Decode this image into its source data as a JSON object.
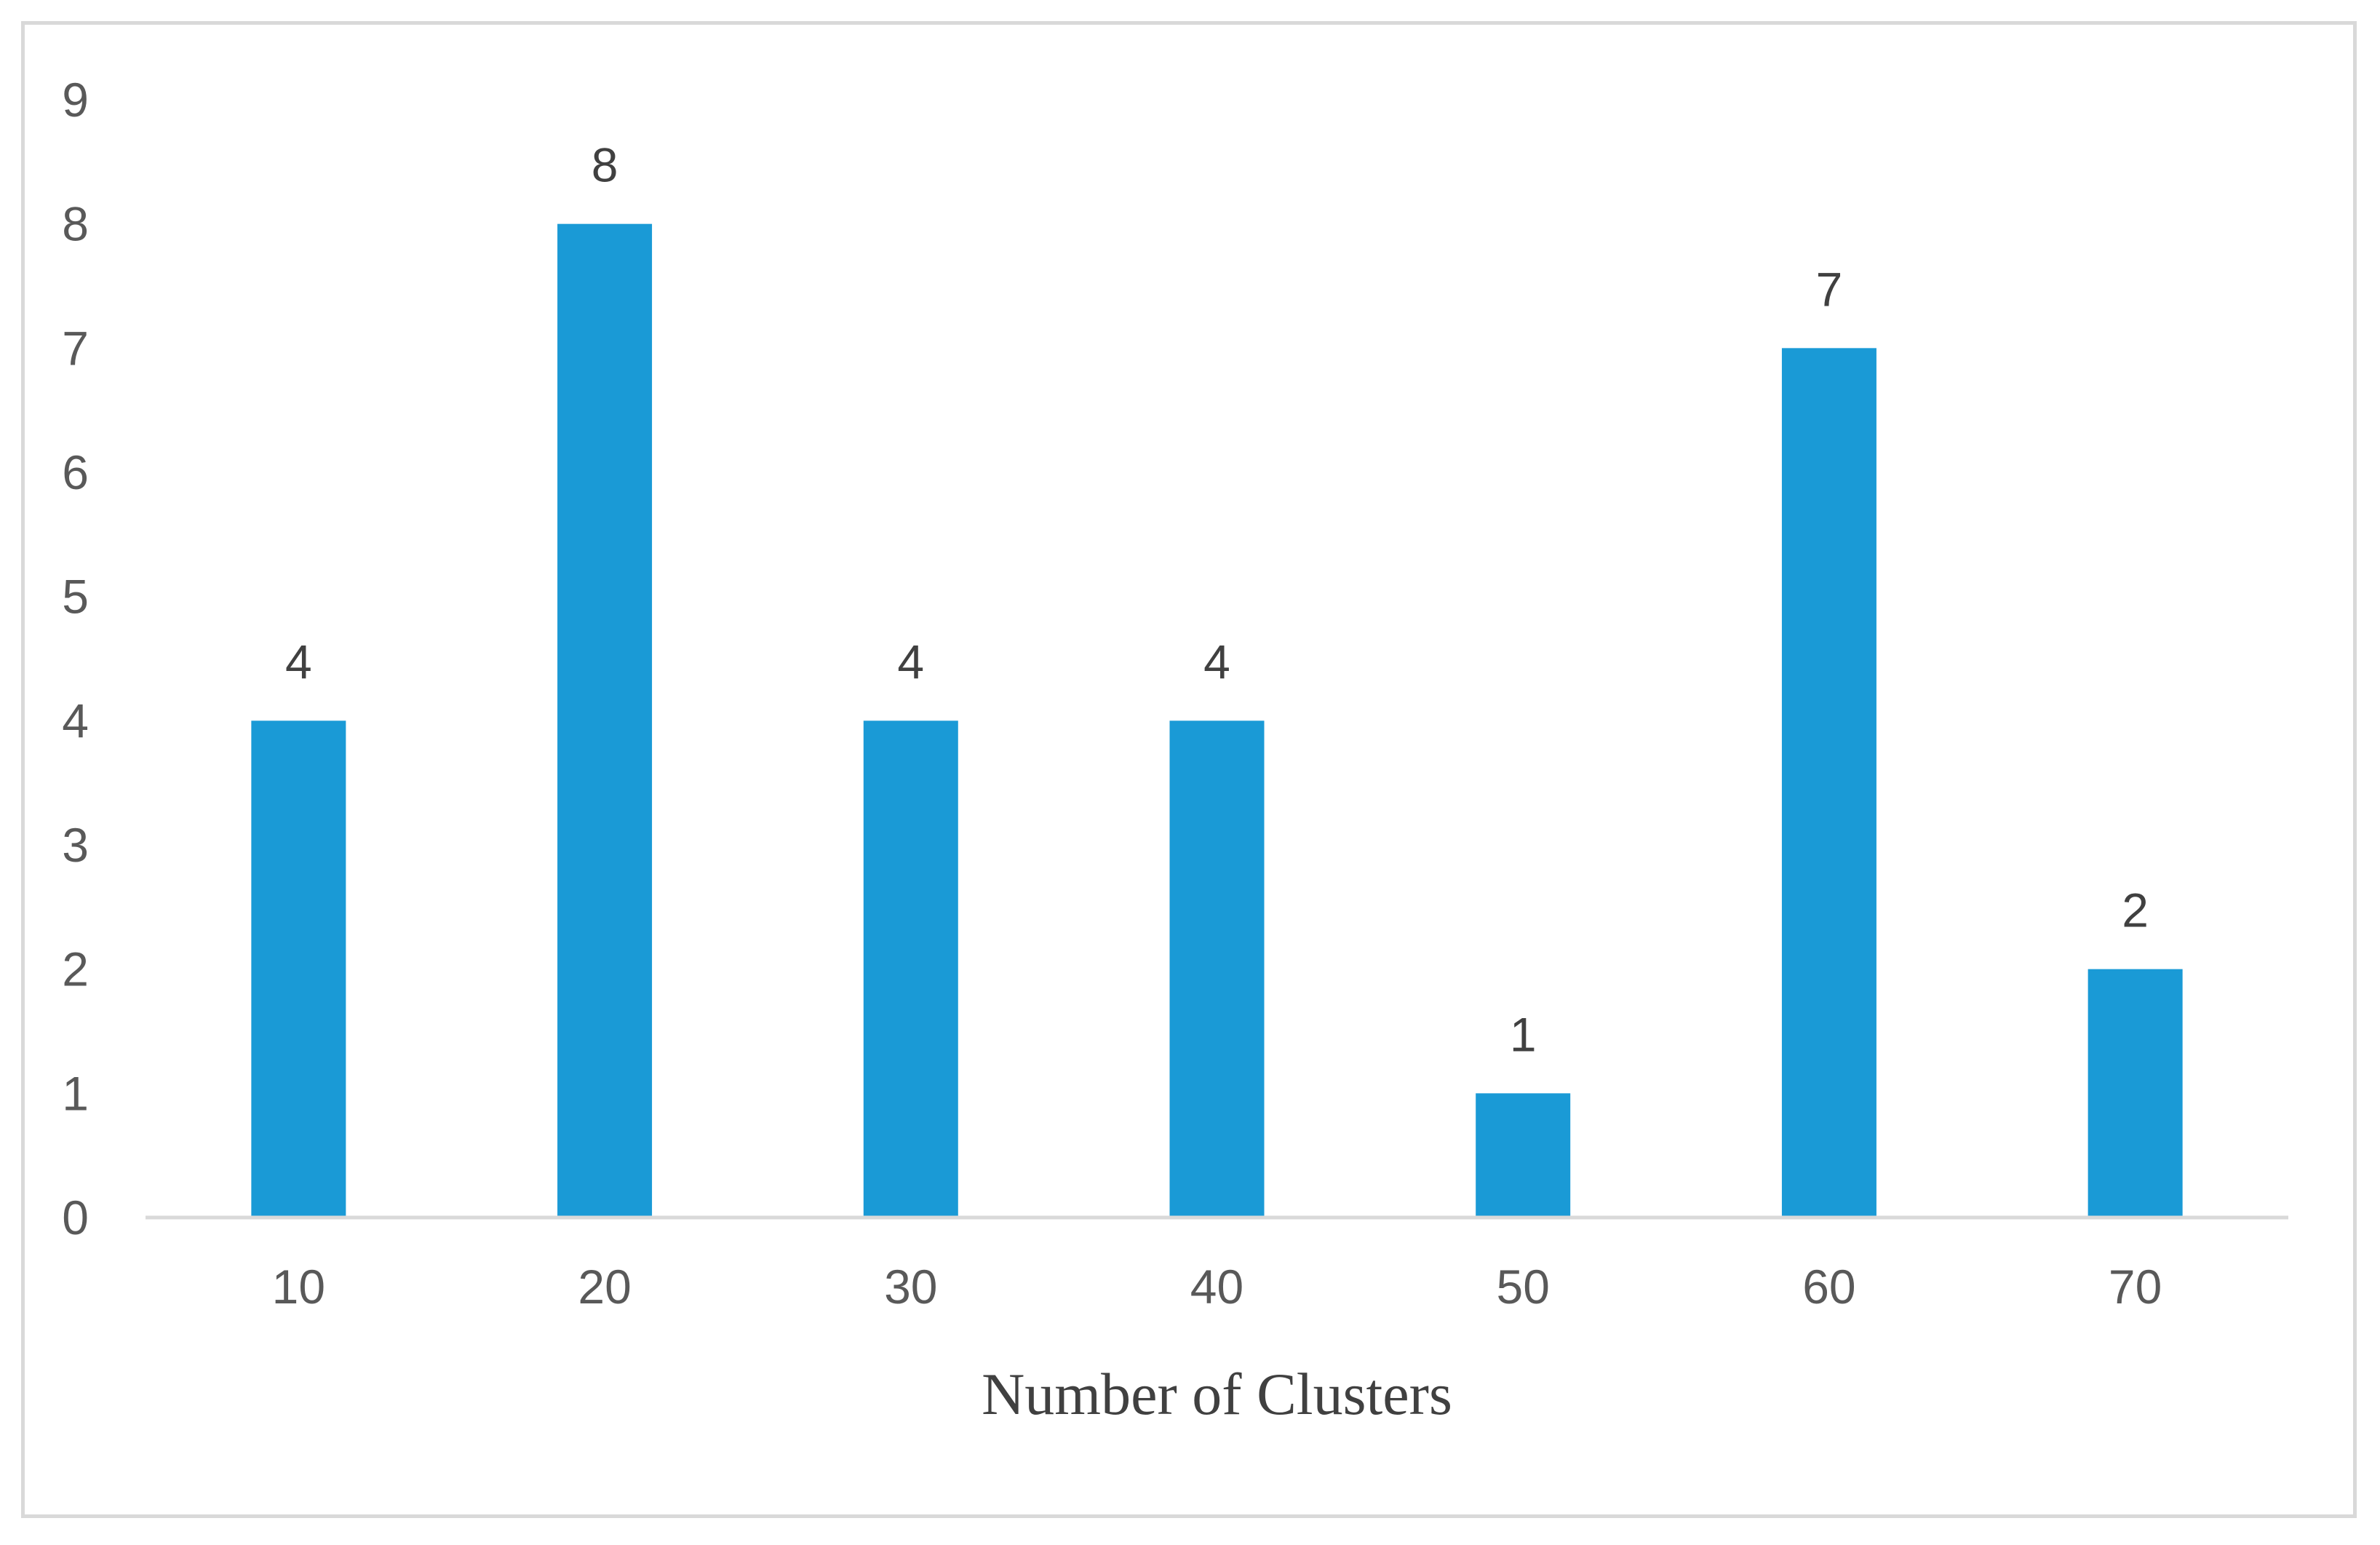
{
  "chart_data": {
    "type": "bar",
    "title": "",
    "xlabel": "Number of Clusters",
    "ylabel": "",
    "categories": [
      "10",
      "20",
      "30",
      "40",
      "50",
      "60",
      "70"
    ],
    "values": [
      4,
      8,
      4,
      4,
      1,
      7,
      2
    ],
    "ylim": [
      0,
      9
    ],
    "yticks": [
      0,
      1,
      2,
      3,
      4,
      5,
      6,
      7,
      8,
      9
    ],
    "data_labels": true,
    "grid": false,
    "legend": "none",
    "colors": {
      "bar": "#1a9ad6",
      "axis": "#d9d9d9",
      "frame": "#d9d9d9",
      "text": "#595959"
    }
  }
}
